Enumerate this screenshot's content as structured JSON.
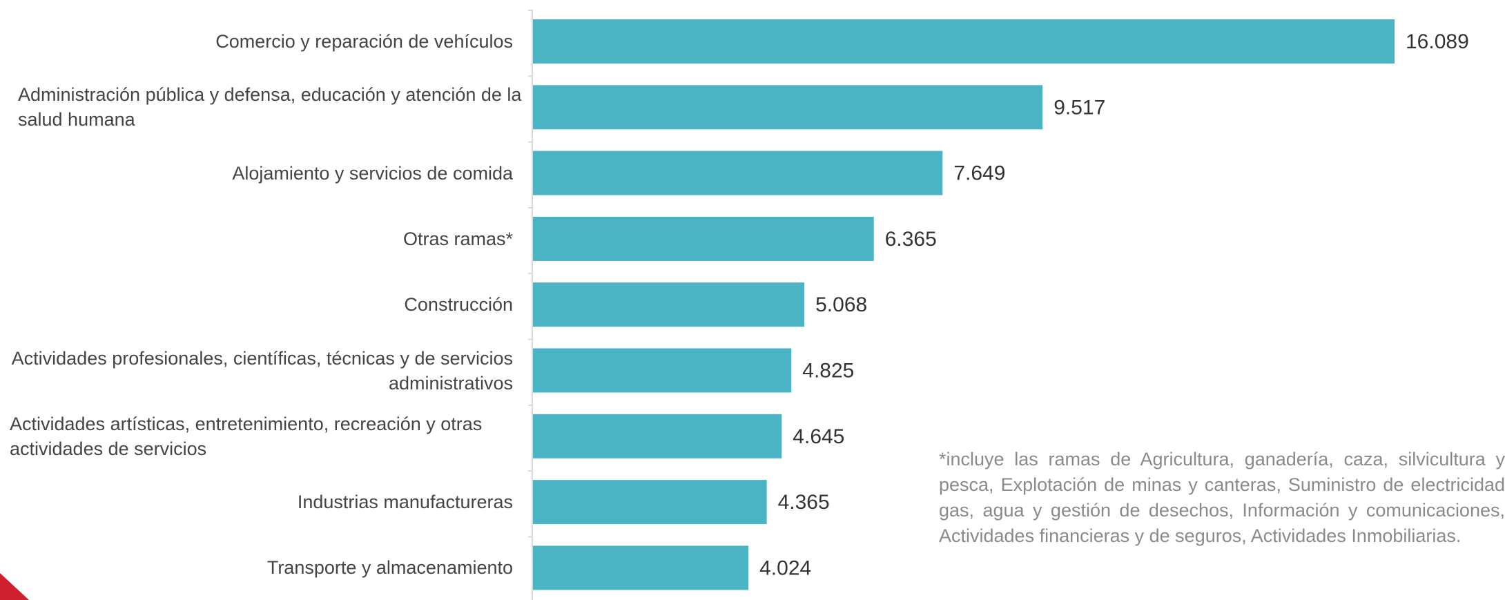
{
  "chart_data": {
    "type": "bar",
    "orientation": "horizontal",
    "categories": [
      "Comercio y reparación de vehículos",
      "Administración pública y defensa, educación y atención de la salud humana",
      "Alojamiento y servicios de comida",
      "Otras ramas*",
      "Construcción",
      "Actividades profesionales, científicas, técnicas y de servicios administrativos",
      "Actividades artísticas, entretenimiento, recreación y otras actividades de servicios",
      "Industrias manufactureras",
      "Transporte y almacenamiento"
    ],
    "values": [
      16089,
      9517,
      7649,
      6365,
      5068,
      4825,
      4645,
      4365,
      4024
    ],
    "data_labels": [
      "16.089",
      "9.517",
      "7.649",
      "6.365",
      "5.068",
      "4.825",
      "4.645",
      "4.365",
      "4.024"
    ],
    "bar_color": "#4ab4c4",
    "xlim": [
      0,
      16089
    ],
    "grid": false,
    "legend": "none"
  },
  "footnote": "*incluye las ramas de Agricultura, ganadería, caza, silvicultura y pesca, Explotación de minas y canteras, Suministro de electricidad gas, agua y gestión de desechos, Información y comunicaciones, Actividades financieras y de seguros, Actividades Inmobiliarias.",
  "colors": {
    "accent": "#d0202e",
    "label_text": "#444444",
    "footnote_text": "#8a8a8a"
  }
}
